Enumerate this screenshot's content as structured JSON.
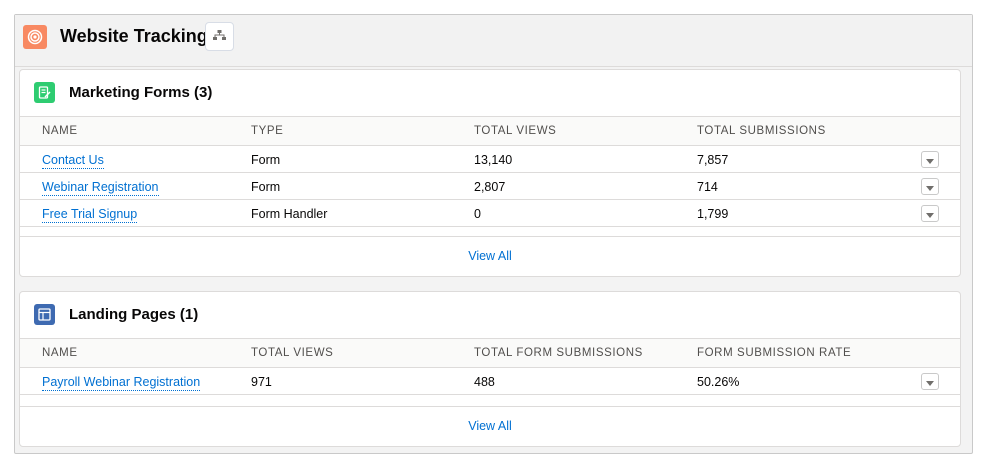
{
  "header": {
    "title": "Website Tracking",
    "icon": "target-icon",
    "icon_color": "#f88962",
    "hierarchy_button_icon": "hierarchy-icon"
  },
  "marketing_forms": {
    "title": "Marketing Forms (3)",
    "icon": "form-icon",
    "icon_color": "#2ecc71",
    "columns": [
      "NAME",
      "TYPE",
      "TOTAL VIEWS",
      "TOTAL SUBMISSIONS"
    ],
    "rows": [
      {
        "name": "Contact Us",
        "type": "Form",
        "views": "13,140",
        "submissions": "7,857"
      },
      {
        "name": "Webinar Registration",
        "type": "Form",
        "views": "2,807",
        "submissions": "714"
      },
      {
        "name": "Free Trial Signup",
        "type": "Form Handler",
        "views": "0",
        "submissions": "1,799"
      }
    ],
    "view_all": "View All"
  },
  "landing_pages": {
    "title": "Landing Pages (1)",
    "icon": "page-layout-icon",
    "icon_color": "#3e6ab1",
    "columns": [
      "NAME",
      "TOTAL VIEWS",
      "TOTAL FORM SUBMISSIONS",
      "FORM SUBMISSION RATE"
    ],
    "rows": [
      {
        "name": "Payroll Webinar Registration",
        "views": "971",
        "submissions": "488",
        "rate": "50.26%"
      }
    ],
    "view_all": "View All"
  }
}
